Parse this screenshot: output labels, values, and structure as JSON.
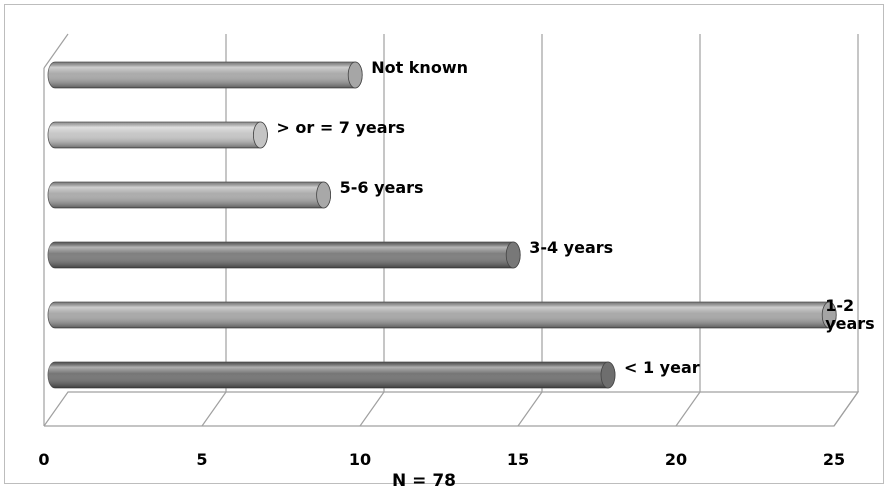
{
  "chart_data": {
    "type": "bar",
    "orientation": "horizontal",
    "style": "3d-cylinder",
    "categories": [
      "< 1 year",
      "1-2 years",
      "3-4 years",
      "5-6 years",
      "> or = 7 years",
      "Not known"
    ],
    "values": [
      17.5,
      24.5,
      14.5,
      8.5,
      6.5,
      9.5
    ],
    "bar_colors": [
      "#6e6e6e",
      "#a4a4a4",
      "#787878",
      "#a8a8a8",
      "#c4c4c4",
      "#a6a6a6"
    ],
    "xlim": [
      0,
      25
    ],
    "xticks": [
      "0",
      "5",
      "10",
      "15",
      "20",
      "25"
    ],
    "annotation": "N = 78",
    "grid": true,
    "legend": "none",
    "title": "",
    "xlabel": "",
    "ylabel": ""
  }
}
